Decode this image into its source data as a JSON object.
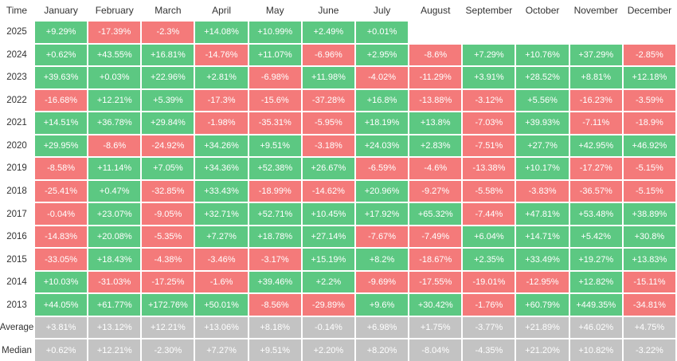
{
  "table": {
    "header": [
      "Time",
      "January",
      "February",
      "March",
      "April",
      "May",
      "June",
      "July",
      "August",
      "September",
      "October",
      "November",
      "December"
    ],
    "rows": [
      [
        "2025",
        "+9.29%",
        "-17.39%",
        "-2.3%",
        "+14.08%",
        "+10.99%",
        "+2.49%",
        "+0.01%"
      ],
      [
        "2024",
        "+0.62%",
        "+43.55%",
        "+16.81%",
        "-14.76%",
        "+11.07%",
        "-6.96%",
        "+2.95%",
        "-8.6%",
        "+7.29%",
        "+10.76%",
        "+37.29%",
        "-2.85%"
      ],
      [
        "2023",
        "+39.63%",
        "+0.03%",
        "+22.96%",
        "+2.81%",
        "-6.98%",
        "+11.98%",
        "-4.02%",
        "-11.29%",
        "+3.91%",
        "+28.52%",
        "+8.81%",
        "+12.18%"
      ],
      [
        "2022",
        "-16.68%",
        "+12.21%",
        "+5.39%",
        "-17.3%",
        "-15.6%",
        "-37.28%",
        "+16.8%",
        "-13.88%",
        "-3.12%",
        "+5.56%",
        "-16.23%",
        "-3.59%"
      ],
      [
        "2021",
        "+14.51%",
        "+36.78%",
        "+29.84%",
        "-1.98%",
        "-35.31%",
        "-5.95%",
        "+18.19%",
        "+13.8%",
        "-7.03%",
        "+39.93%",
        "-7.11%",
        "-18.9%"
      ],
      [
        "2020",
        "+29.95%",
        "-8.6%",
        "-24.92%",
        "+34.26%",
        "+9.51%",
        "-3.18%",
        "+24.03%",
        "+2.83%",
        "-7.51%",
        "+27.7%",
        "+42.95%",
        "+46.92%"
      ],
      [
        "2019",
        "-8.58%",
        "+11.14%",
        "+7.05%",
        "+34.36%",
        "+52.38%",
        "+26.67%",
        "-6.59%",
        "-4.6%",
        "-13.38%",
        "+10.17%",
        "-17.27%",
        "-5.15%"
      ],
      [
        "2018",
        "-25.41%",
        "+0.47%",
        "-32.85%",
        "+33.43%",
        "-18.99%",
        "-14.62%",
        "+20.96%",
        "-9.27%",
        "-5.58%",
        "-3.83%",
        "-36.57%",
        "-5.15%"
      ],
      [
        "2017",
        "-0.04%",
        "+23.07%",
        "-9.05%",
        "+32.71%",
        "+52.71%",
        "+10.45%",
        "+17.92%",
        "+65.32%",
        "-7.44%",
        "+47.81%",
        "+53.48%",
        "+38.89%"
      ],
      [
        "2016",
        "-14.83%",
        "+20.08%",
        "-5.35%",
        "+7.27%",
        "+18.78%",
        "+27.14%",
        "-7.67%",
        "-7.49%",
        "+6.04%",
        "+14.71%",
        "+5.42%",
        "+30.8%"
      ],
      [
        "2015",
        "-33.05%",
        "+18.43%",
        "-4.38%",
        "-3.46%",
        "-3.17%",
        "+15.19%",
        "+8.2%",
        "-18.67%",
        "+2.35%",
        "+33.49%",
        "+19.27%",
        "+13.83%"
      ],
      [
        "2014",
        "+10.03%",
        "-31.03%",
        "-17.25%",
        "-1.6%",
        "+39.46%",
        "+2.2%",
        "-9.69%",
        "-17.55%",
        "-19.01%",
        "-12.95%",
        "+12.82%",
        "-15.11%"
      ],
      [
        "2013",
        "+44.05%",
        "+61.77%",
        "+172.76%",
        "+50.01%",
        "-8.56%",
        "-29.89%",
        "+9.6%",
        "+30.42%",
        "-1.76%",
        "+60.79%",
        "+449.35%",
        "-34.81%"
      ]
    ],
    "summary_rows": [
      [
        "Average",
        "+3.81%",
        "+13.12%",
        "+12.21%",
        "+13.06%",
        "+8.18%",
        "-0.14%",
        "+6.98%",
        "+1.75%",
        "-3.77%",
        "+21.89%",
        "+46.02%",
        "+4.75%"
      ],
      [
        "Median",
        "+0.62%",
        "+12.21%",
        "-2.30%",
        "+7.27%",
        "+9.51%",
        "+2.20%",
        "+8.20%",
        "-8.04%",
        "-4.35%",
        "+21.20%",
        "+10.82%",
        "-3.22%"
      ]
    ]
  }
}
